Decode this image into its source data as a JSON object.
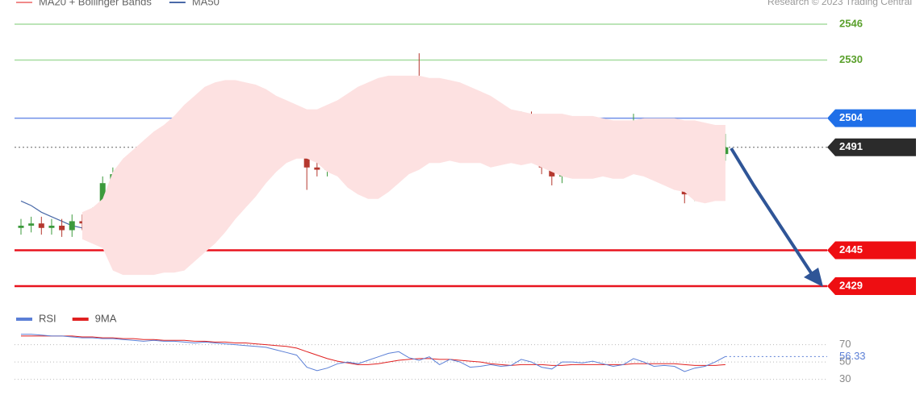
{
  "chart_data": [
    {
      "type": "candlestick",
      "credit": "Research © 2023 Trading Central",
      "ylim": [
        2423.6,
        2556.8
      ],
      "candles": {
        "up_color": "#3c9a3c",
        "down_color": "#b5382f",
        "open": [
          2455,
          2456,
          2457,
          2455,
          2456,
          2454,
          2458,
          2457,
          2461,
          2475,
          2479,
          2478,
          2477,
          2480,
          2487,
          2482,
          2480,
          2496,
          2502,
          2503,
          2503,
          2508,
          2500,
          2495,
          2497,
          2500,
          2501,
          2499,
          2492,
          2482,
          2481,
          2487,
          2492,
          2493,
          2491,
          2498,
          2505,
          2510,
          2516,
          2509,
          2505,
          2510,
          2496,
          2508,
          2500,
          2490,
          2491,
          2494,
          2489,
          2491,
          2504,
          2497,
          2482,
          2478,
          2490,
          2494,
          2492,
          2494,
          2491,
          2483,
          2487,
          2501,
          2494,
          2484,
          2482,
          2481,
          2470,
          2476,
          2479,
          2488
        ],
        "high": [
          2459,
          2460,
          2460,
          2459,
          2459,
          2461,
          2461,
          2464,
          2478,
          2482,
          2482,
          2481,
          2483,
          2490,
          2490,
          2485,
          2499,
          2505,
          2506,
          2506,
          2515,
          2511,
          2503,
          2500,
          2503,
          2504,
          2504,
          2502,
          2495,
          2485,
          2490,
          2495,
          2496,
          2496,
          2501,
          2508,
          2513,
          2520,
          2519,
          2533,
          2513,
          2513,
          2511,
          2511,
          2503,
          2494,
          2497,
          2497,
          2494,
          2507,
          2507,
          2500,
          2485,
          2493,
          2497,
          2497,
          2497,
          2497,
          2494,
          2490,
          2506,
          2504,
          2497,
          2487,
          2485,
          2484,
          2479,
          2482,
          2491,
          2497
        ],
        "low": [
          2452,
          2453,
          2452,
          2452,
          2451,
          2451,
          2454,
          2454,
          2458,
          2472,
          2475,
          2474,
          2474,
          2477,
          2479,
          2477,
          2477,
          2493,
          2499,
          2500,
          2500,
          2497,
          2488,
          2492,
          2494,
          2497,
          2496,
          2489,
          2472,
          2478,
          2478,
          2484,
          2489,
          2488,
          2488,
          2495,
          2502,
          2507,
          2506,
          2502,
          2502,
          2493,
          2493,
          2497,
          2487,
          2487,
          2488,
          2486,
          2486,
          2488,
          2494,
          2479,
          2474,
          2475,
          2487,
          2489,
          2489,
          2488,
          2480,
          2480,
          2484,
          2491,
          2481,
          2479,
          2478,
          2466,
          2467,
          2473,
          2476,
          2485
        ],
        "close": [
          2456,
          2457,
          2455,
          2456,
          2454,
          2458,
          2457,
          2461,
          2475,
          2479,
          2478,
          2477,
          2480,
          2487,
          2482,
          2480,
          2496,
          2502,
          2503,
          2503,
          2508,
          2500,
          2495,
          2497,
          2500,
          2501,
          2499,
          2492,
          2482,
          2481,
          2487,
          2492,
          2493,
          2491,
          2498,
          2505,
          2510,
          2516,
          2509,
          2505,
          2510,
          2496,
          2508,
          2500,
          2490,
          2491,
          2494,
          2489,
          2491,
          2504,
          2497,
          2482,
          2478,
          2490,
          2494,
          2492,
          2494,
          2491,
          2483,
          2487,
          2501,
          2494,
          2484,
          2482,
          2481,
          2470,
          2476,
          2479,
          2488,
          2491
        ]
      },
      "series": [
        {
          "name": "MA20 + Bollinger Bands",
          "color": "#f08a8a",
          "band_color": "#fde1e1",
          "values": [
            null,
            null,
            null,
            null,
            null,
            null,
            2456,
            2456,
            2457,
            2458,
            2460,
            2462,
            2464,
            2466,
            2468,
            2470,
            2473,
            2477,
            2481,
            2484,
            2487,
            2490,
            2492,
            2494,
            2496,
            2497,
            2498,
            2498,
            2497,
            2496,
            2495,
            2495,
            2494,
            2494,
            2494,
            2495,
            2497,
            2499,
            2501,
            2502,
            2503,
            2503,
            2503,
            2502,
            2501,
            2500,
            2498,
            2497,
            2496,
            2495,
            2495,
            2494,
            2493,
            2492,
            2491,
            2491,
            2491,
            2491,
            2490,
            2490,
            2491,
            2491,
            2490,
            2489,
            2488,
            2487,
            2485,
            2484,
            2484,
            2484
          ],
          "upper": [
            null,
            null,
            null,
            null,
            null,
            null,
            2462,
            2464,
            2468,
            2480,
            2486,
            2490,
            2494,
            2498,
            2501,
            2505,
            2510,
            2514,
            2518,
            2520,
            2521,
            2521,
            2520,
            2519,
            2517,
            2514,
            2512,
            2510,
            2508,
            2508,
            2510,
            2512,
            2515,
            2518,
            2520,
            2522,
            2523,
            2523,
            2523,
            2523,
            2522,
            2522,
            2521,
            2520,
            2518,
            2516,
            2514,
            2511,
            2508,
            2507,
            2506,
            2506,
            2506,
            2506,
            2505,
            2505,
            2505,
            2504,
            2503,
            2503,
            2503,
            2504,
            2504,
            2504,
            2504,
            2503,
            2503,
            2502,
            2501,
            2501
          ],
          "lower": [
            null,
            null,
            null,
            null,
            null,
            null,
            2450,
            2448,
            2446,
            2436,
            2434,
            2434,
            2434,
            2434,
            2435,
            2435,
            2436,
            2440,
            2444,
            2448,
            2453,
            2459,
            2464,
            2469,
            2475,
            2480,
            2484,
            2486,
            2486,
            2484,
            2480,
            2478,
            2473,
            2470,
            2468,
            2468,
            2471,
            2475,
            2479,
            2481,
            2484,
            2484,
            2485,
            2484,
            2484,
            2484,
            2482,
            2483,
            2484,
            2483,
            2484,
            2482,
            2480,
            2478,
            2477,
            2477,
            2477,
            2478,
            2477,
            2477,
            2479,
            2478,
            2476,
            2474,
            2472,
            2471,
            2467,
            2466,
            2467,
            2467
          ]
        },
        {
          "name": "MA50",
          "color": "#4a6aa8",
          "values": [
            2467,
            2465,
            2462,
            2460,
            2458,
            2456,
            2455,
            2455,
            2456,
            2457,
            2459,
            2461,
            2463,
            2465,
            2467,
            2470,
            2473,
            2476,
            2479,
            2482,
            2485,
            2487,
            2489,
            2490,
            2492,
            2493,
            2494,
            2495,
            2495,
            2496,
            2496,
            2497,
            2497,
            2497,
            2498,
            2499,
            2500,
            2501,
            2502,
            2502,
            2502,
            2502,
            2501,
            2500,
            2499,
            2499,
            2498,
            2498,
            2497,
            2497,
            2497,
            2496,
            2496,
            2495,
            2495,
            2495,
            2495,
            2494,
            2494,
            2494,
            2494,
            2494,
            2493,
            2492,
            2491,
            2490,
            2489,
            2489,
            2489,
            2489
          ]
        }
      ],
      "levels": [
        {
          "value": 2546,
          "color": "#a6dca0",
          "text_color": "#5aa02c",
          "tag": false,
          "dotted": false
        },
        {
          "value": 2530,
          "color": "#a6dca0",
          "text_color": "#5aa02c",
          "tag": false,
          "dotted": false
        },
        {
          "value": 2504,
          "color": "#6f8fe8",
          "text_color": "#ffffff",
          "tag_color": "#1f6fe8",
          "tag": true,
          "dotted": false
        },
        {
          "value": 2491,
          "color": "#666666",
          "text_color": "#ffffff",
          "tag_color": "#2b2b2b",
          "tag": true,
          "dotted": true
        },
        {
          "value": 2445,
          "color": "#e8141e",
          "text_color": "#ffffff",
          "tag_color": "#ee0e12",
          "tag": true,
          "dotted": false
        },
        {
          "value": 2429,
          "color": "#e8141e",
          "text_color": "#ffffff",
          "tag_color": "#ee0e12",
          "tag": true,
          "dotted": false
        }
      ]
    },
    {
      "type": "line",
      "ylim": [
        12,
        96
      ],
      "yticks": [
        30,
        50,
        70
      ],
      "grid": true,
      "series": [
        {
          "name": "RSI",
          "color": "#5b7fd6",
          "values": [
            82,
            82,
            81,
            80,
            80,
            79,
            78,
            78,
            77,
            77,
            76,
            75,
            74,
            75,
            74,
            74,
            73,
            72,
            73,
            72,
            71,
            70,
            69,
            68,
            67,
            64,
            61,
            58,
            44,
            40,
            43,
            48,
            50,
            48,
            52,
            56,
            60,
            62,
            55,
            52,
            56,
            47,
            53,
            50,
            44,
            45,
            47,
            45,
            46,
            53,
            50,
            44,
            42,
            50,
            50,
            49,
            51,
            48,
            45,
            47,
            54,
            50,
            45,
            46,
            45,
            39,
            43,
            45,
            50,
            56.33
          ]
        },
        {
          "name": "9MA",
          "color": "#e02020",
          "values": [
            80,
            80,
            80,
            80,
            80,
            80,
            79,
            79,
            78,
            78,
            77,
            77,
            76,
            76,
            75,
            75,
            75,
            74,
            74,
            73,
            73,
            72,
            72,
            71,
            70,
            69,
            68,
            66,
            62,
            58,
            54,
            51,
            49,
            47,
            47,
            48,
            50,
            52,
            53,
            54,
            54,
            53,
            53,
            52,
            51,
            50,
            48,
            47,
            46,
            47,
            47,
            47,
            46,
            46,
            47,
            47,
            47,
            47,
            47,
            47,
            48,
            48,
            48,
            48,
            48,
            47,
            46,
            46,
            46,
            47
          ]
        }
      ]
    }
  ]
}
